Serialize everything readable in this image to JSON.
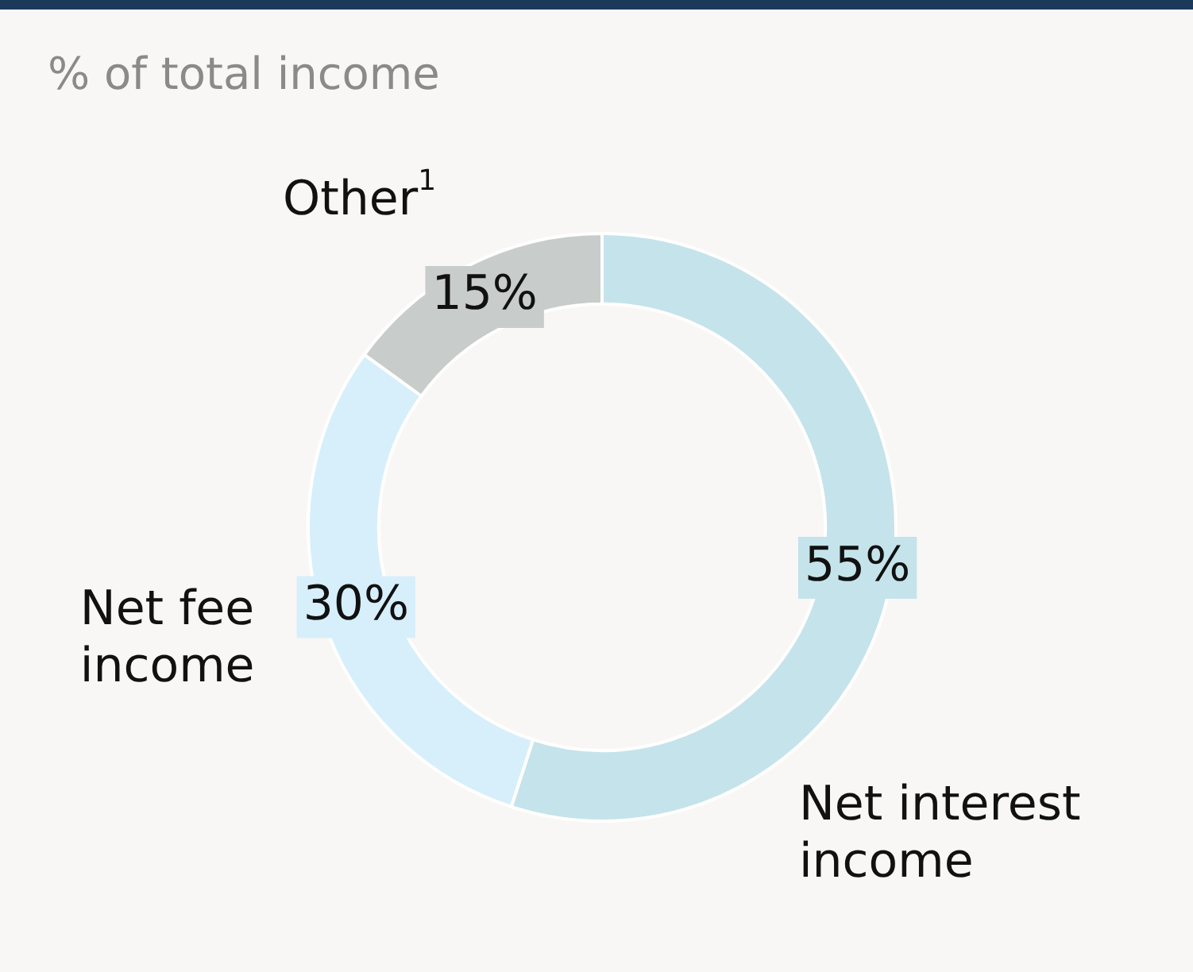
{
  "chart_data": {
    "type": "donut",
    "title": "% of total income",
    "categories": [
      "Net interest income",
      "Net fee income",
      "Other$^{1}$"
    ],
    "values": [
      55,
      30,
      15
    ],
    "colors": [
      "#c5e3ea",
      "#d6effb",
      "#c8cccb"
    ],
    "value_labels": [
      "55%",
      "30%",
      "15%"
    ]
  }
}
